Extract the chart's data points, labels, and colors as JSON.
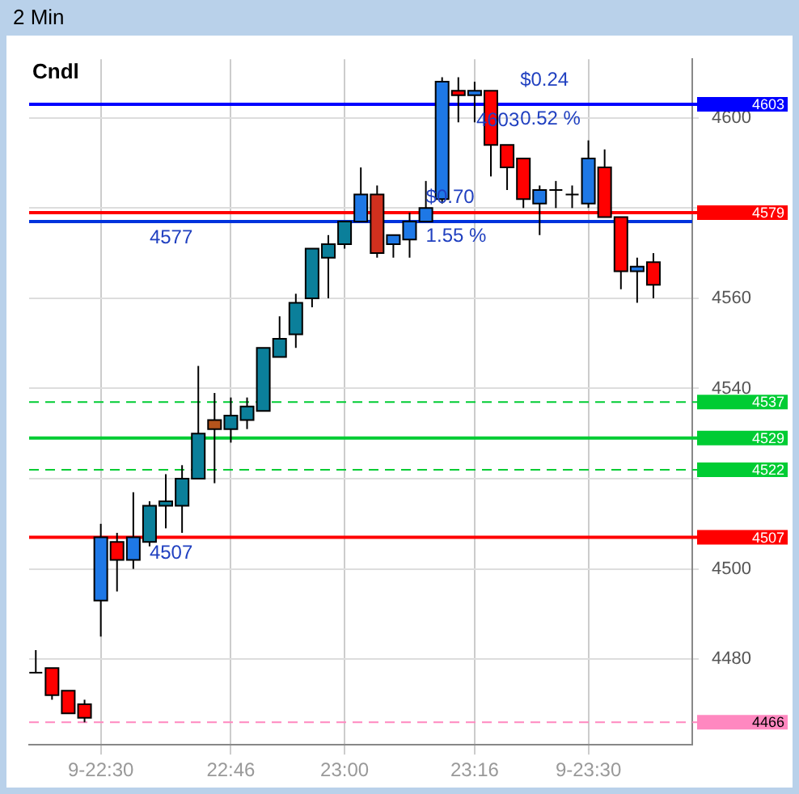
{
  "chart_data": {
    "type": "candlestick",
    "title": "2 Min",
    "x": [
      22.3667,
      22.4,
      22.4333,
      22.4667,
      22.5,
      22.5333,
      22.5667,
      22.6,
      22.6333,
      22.6667,
      22.7,
      22.7333,
      22.7667,
      22.8,
      22.8333,
      22.8667,
      22.9,
      22.9333,
      22.9667,
      23,
      23.0333,
      23.0667,
      23.1,
      23.1333,
      23.1667,
      23.2,
      23.2333,
      23.2667,
      23.3,
      23.3333,
      23.3667,
      23.4,
      23.4333,
      23.4667,
      23.5,
      23.5333,
      23.5667,
      23.6,
      23.6333
    ],
    "ohlc": [
      [
        4477,
        4482,
        4477,
        4477
      ],
      [
        4478,
        4478,
        4471,
        4472
      ],
      [
        4473,
        4473,
        4468,
        4468
      ],
      [
        4470,
        4471,
        4466,
        4467
      ],
      [
        4493,
        4510,
        4485,
        4507
      ],
      [
        4506,
        4508,
        4495,
        4502
      ],
      [
        4502,
        4517,
        4500,
        4507
      ],
      [
        4506,
        4515,
        4505,
        4514
      ],
      [
        4514,
        4521,
        4509,
        4515
      ],
      [
        4514,
        4523,
        4508,
        4520
      ],
      [
        4520,
        4545,
        4520,
        4530
      ],
      [
        4533,
        4539,
        4519,
        4531
      ],
      [
        4531,
        4538,
        4528,
        4534
      ],
      [
        4533,
        4538,
        4531,
        4536
      ],
      [
        4535,
        4549,
        4535,
        4549
      ],
      [
        4547,
        4556,
        4547,
        4551
      ],
      [
        4552,
        4561,
        4549,
        4559
      ],
      [
        4560,
        4571,
        4558,
        4571
      ],
      [
        4569,
        4574,
        4560,
        4572
      ],
      [
        4572,
        4577,
        4571,
        4577
      ],
      [
        4577,
        4589,
        4577,
        4583
      ],
      [
        4583,
        4585,
        4569,
        4570
      ],
      [
        4572,
        4574,
        4569,
        4574
      ],
      [
        4573,
        4579,
        4569,
        4577
      ],
      [
        4577,
        4586,
        4577,
        4580
      ],
      [
        4582,
        4609,
        4581,
        4608
      ],
      [
        4606,
        4609,
        4599,
        4605
      ],
      [
        4605,
        4608,
        4599,
        4606
      ],
      [
        4606,
        4606,
        4587,
        4594
      ],
      [
        4594,
        4594,
        4584,
        4589
      ],
      [
        4591,
        4591,
        4580,
        4582
      ],
      [
        4581,
        4585,
        4574,
        4584
      ],
      [
        4584,
        4586,
        4580,
        4584
      ],
      [
        4583,
        4585,
        4580,
        4583
      ],
      [
        4581,
        4595,
        4580,
        4591
      ],
      [
        4589,
        4593,
        4578,
        4578
      ],
      [
        4578,
        4578,
        4562,
        4566
      ],
      [
        4566,
        4569,
        4559,
        4567
      ],
      [
        4568,
        4570,
        4560,
        4563
      ]
    ],
    "colors": [
      "#000000",
      "#ff0000",
      "#ff0000",
      "#ff0000",
      "#1e78e6",
      "#ff0000",
      "#1e78e6",
      "#0b7f9a",
      "#0b7f9a",
      "#0b7f9a",
      "#0b7f9a",
      "#b5541c",
      "#0b7f9a",
      "#0b7f9a",
      "#0b7f9a",
      "#0b7f9a",
      "#0b7f9a",
      "#0b7f9a",
      "#0b7f9a",
      "#0b7f9a",
      "#1e78e6",
      "#d0301e",
      "#1e78e6",
      "#1e78e6",
      "#1e78e6",
      "#1e78e6",
      "#ff0000",
      "#1e78e6",
      "#ff0000",
      "#ff0000",
      "#ff0000",
      "#1e78e6",
      "#000000",
      "#000000",
      "#1e78e6",
      "#ff0000",
      "#ff0000",
      "#1e78e6",
      "#ff0000"
    ],
    "xlim": [
      22.353,
      23.713
    ],
    "xticks": [
      {
        "value": 22.5,
        "label": "9-22:30"
      },
      {
        "value": 22.7667,
        "label": "22:46"
      },
      {
        "value": 23,
        "label": "23:00"
      },
      {
        "value": 23.2667,
        "label": "23:16"
      },
      {
        "value": 23.5,
        "label": "9-23:30"
      }
    ],
    "ylim": [
      4461,
      4613
    ],
    "yticks": [
      4480,
      4500,
      {
        "value": 4520,
        "label": null
      },
      4540,
      4560,
      {
        "value": 4580,
        "label": null
      },
      4600
    ],
    "grid": true,
    "ref_lines": [
      {
        "axis": "y",
        "value": 4603,
        "label": "4603",
        "color": "#0000ff"
      },
      {
        "axis": "y",
        "value": 4577,
        "label": null,
        "color": "#0033dd"
      },
      {
        "axis": "y",
        "value": 4579,
        "label": "4579",
        "color": "#ff0000"
      },
      {
        "axis": "y",
        "value": 4537,
        "label": "4537",
        "color": "#00cc33",
        "line_style": "dashed"
      },
      {
        "axis": "y",
        "value": 4529,
        "label": "4529",
        "color": "#00cc33"
      },
      {
        "axis": "y",
        "value": 4522,
        "label": "4522",
        "color": "#00cc33",
        "line_style": "dashed"
      },
      {
        "axis": "y",
        "value": 4507,
        "label": "4507",
        "color": "#ff0000"
      },
      {
        "axis": "y",
        "value": 4466,
        "label": "4466",
        "color": "#ff88c0",
        "line_style": "dashed"
      }
    ],
    "annotations": [
      "Cndl",
      {
        "text": "4577",
        "x": 22.6,
        "y": 4577
      },
      {
        "text": "4507",
        "x": 22.6,
        "y": 4507
      },
      {
        "text": "4603",
        "x": 23.27,
        "y": 4603
      },
      {
        "text": "$0.70\n1.55 %",
        "x": 23.1667,
        "y": 4577
      },
      {
        "text": "$0.24\n0.52 %",
        "x": 23.36,
        "y": 4603
      }
    ]
  }
}
